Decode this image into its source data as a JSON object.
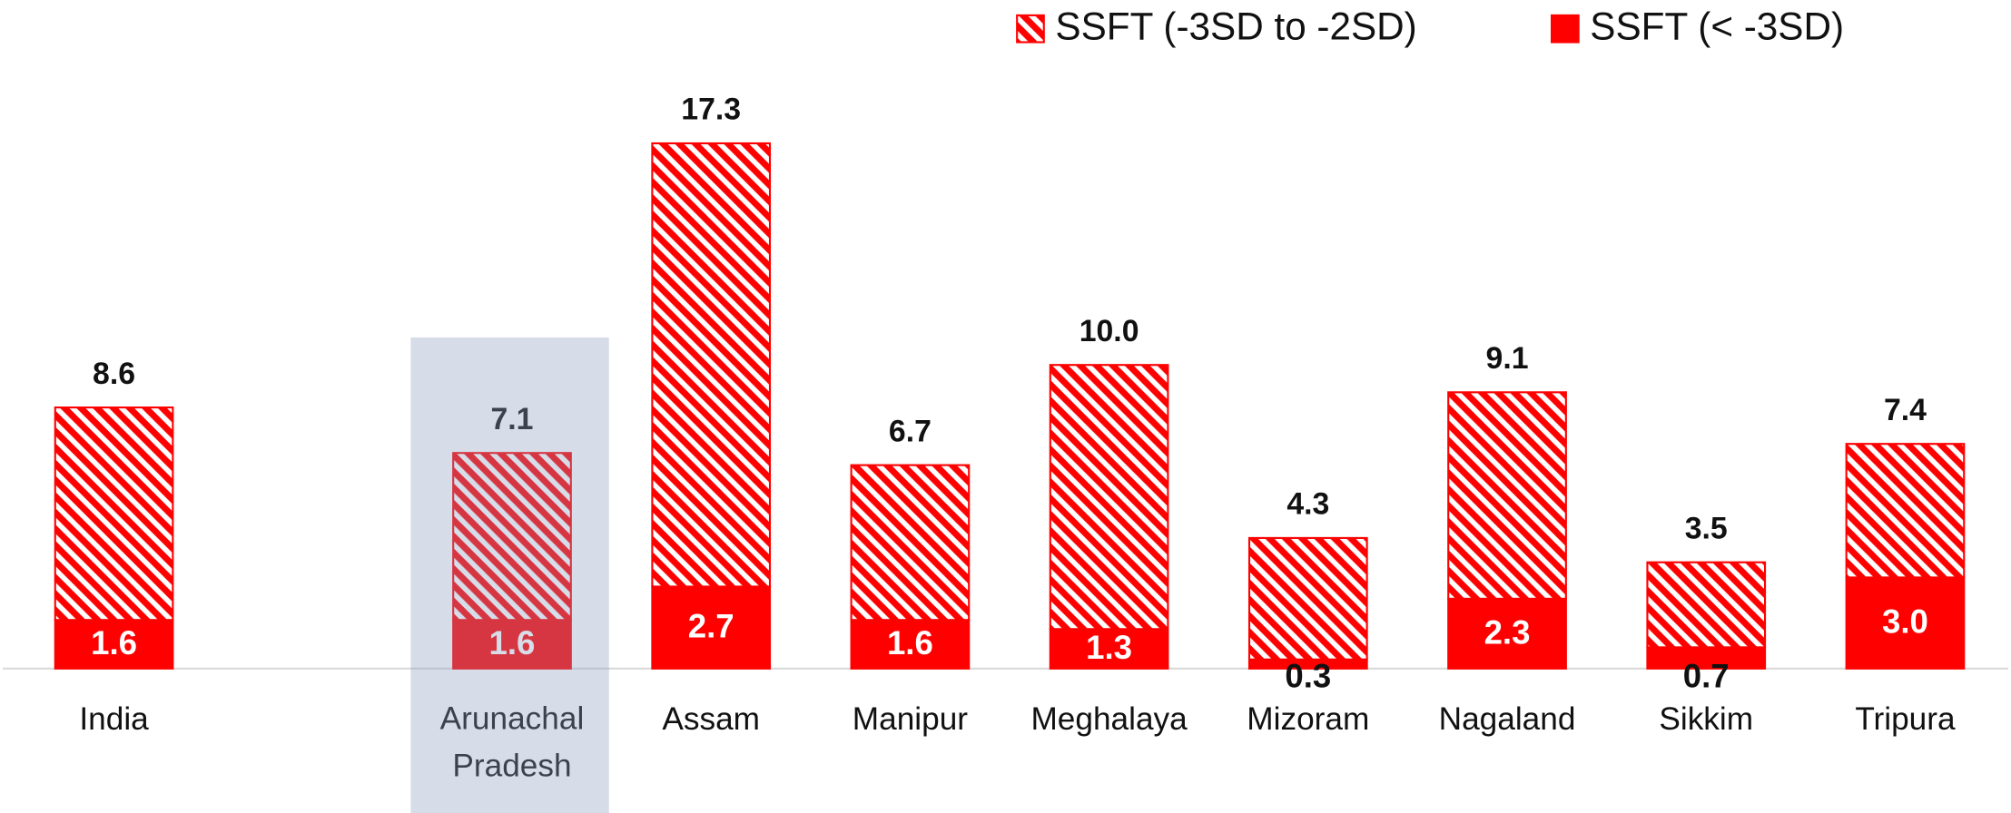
{
  "chart_data": {
    "type": "stacked_bar",
    "categories": [
      "India",
      null,
      "Arunachal Pradesh",
      "Assam",
      "Manipur",
      "Meghalaya",
      "Mizoram",
      "Nagaland",
      "Sikkim",
      "Tripura"
    ],
    "series": [
      {
        "name": "SSFT (< -3SD)",
        "color": "#ff0000",
        "fill": "solid",
        "values": [
          1.6,
          null,
          1.6,
          2.7,
          1.6,
          1.3,
          0.3,
          2.3,
          0.7,
          3.0
        ],
        "value_labels": [
          "1.6",
          null,
          "1.6",
          "2.7",
          "1.6",
          "1.3",
          "0.3",
          "2.3",
          "0.7",
          "3.0"
        ]
      },
      {
        "name": "SSFT (-3SD to -2SD)",
        "color": "#ff0000",
        "fill": "hatched",
        "values": [
          7.0,
          null,
          5.5,
          14.6,
          5.1,
          8.7,
          4.0,
          6.8,
          2.8,
          4.4
        ]
      }
    ],
    "total_labels": [
      "8.6",
      null,
      "7.1",
      "17.3",
      "6.7",
      "10.0",
      "4.3",
      "9.1",
      "3.5",
      "7.4"
    ],
    "ylim": [
      0,
      20
    ],
    "legend": "top"
  }
}
